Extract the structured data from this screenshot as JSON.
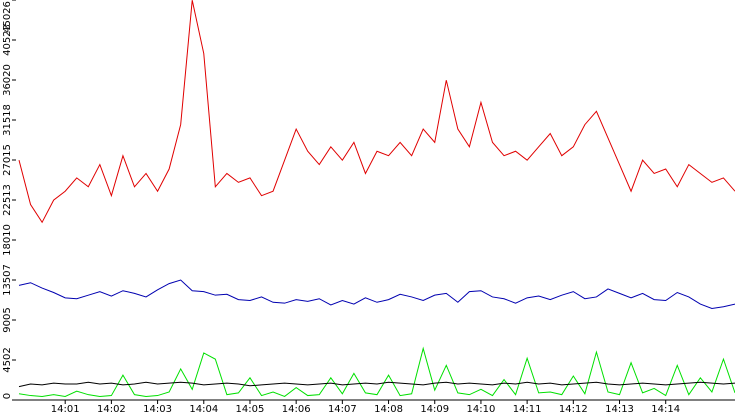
{
  "chart_data": {
    "type": "line",
    "x": [
      0,
      0.25,
      0.5,
      0.75,
      1,
      1.25,
      1.5,
      1.75,
      2,
      2.25,
      2.5,
      2.75,
      3,
      3.25,
      3.5,
      3.75,
      4,
      4.25,
      4.5,
      4.75,
      5,
      5.25,
      5.5,
      5.75,
      6,
      6.25,
      6.5,
      6.75,
      7,
      7.25,
      7.5,
      7.75,
      8,
      8.25,
      8.5,
      8.75,
      9,
      9.25,
      9.5,
      9.75,
      10,
      10.25,
      10.5,
      10.75,
      11,
      11.25,
      11.5,
      11.75,
      12,
      12.25,
      12.5,
      12.75,
      13,
      13.25,
      13.5,
      13.75,
      14,
      14.25,
      14.5,
      14.75,
      15,
      15.25,
      15.5
    ],
    "xlim": [
      0,
      15.5
    ],
    "xticks": [
      {
        "value": 1,
        "label": "14:01"
      },
      {
        "value": 2,
        "label": "14:02"
      },
      {
        "value": 3,
        "label": "14:03"
      },
      {
        "value": 4,
        "label": "14:04"
      },
      {
        "value": 5,
        "label": "14:05"
      },
      {
        "value": 6,
        "label": "14:06"
      },
      {
        "value": 7,
        "label": "14:07"
      },
      {
        "value": 8,
        "label": "14:08"
      },
      {
        "value": 9,
        "label": "14:09"
      },
      {
        "value": 10,
        "label": "14:10"
      },
      {
        "value": 11,
        "label": "14:11"
      },
      {
        "value": 12,
        "label": "14:12"
      },
      {
        "value": 13,
        "label": "14:13"
      },
      {
        "value": 14,
        "label": "14:14"
      }
    ],
    "ylim": [
      0,
      45026
    ],
    "yticks": [
      0,
      4502,
      9005,
      13507,
      18010,
      22513,
      27015,
      31518,
      36020,
      40523,
      45026
    ],
    "series": [
      {
        "color": "#e00000",
        "values": [
          27000,
          22000,
          20000,
          22500,
          23500,
          25000,
          24000,
          26500,
          23000,
          27500,
          24000,
          25500,
          23500,
          26000,
          31000,
          45000,
          39000,
          24000,
          25500,
          24500,
          25000,
          23000,
          23500,
          27000,
          30500,
          28000,
          26500,
          28500,
          27000,
          29000,
          25500,
          28000,
          27500,
          29000,
          27500,
          30500,
          29000,
          36000,
          30500,
          28500,
          33500,
          29000,
          27500,
          28000,
          27000,
          28500,
          30000,
          27500,
          28500,
          31000,
          32500,
          29500,
          26500,
          23500,
          27000,
          25500,
          26000,
          24000,
          26500,
          25500,
          24500,
          25000,
          23500
        ]
      },
      {
        "color": "#0000b0",
        "values": [
          12900,
          13200,
          12600,
          12100,
          11500,
          11400,
          11800,
          12200,
          11700,
          12300,
          12000,
          11600,
          12400,
          13100,
          13500,
          12300,
          12200,
          11800,
          11900,
          11300,
          11200,
          11600,
          11000,
          10900,
          11300,
          11100,
          11400,
          10700,
          11200,
          10800,
          11500,
          11000,
          11300,
          11900,
          11600,
          11200,
          11800,
          12000,
          11000,
          12200,
          12300,
          11600,
          11400,
          10900,
          11500,
          11700,
          11300,
          11800,
          12200,
          11400,
          11600,
          12500,
          12000,
          11500,
          12000,
          11300,
          11200,
          12100,
          11600,
          10800,
          10300,
          10500,
          10800
        ]
      },
      {
        "color": "#00e000",
        "values": [
          700,
          500,
          400,
          600,
          400,
          1000,
          600,
          400,
          500,
          2800,
          600,
          400,
          500,
          900,
          3500,
          1200,
          5300,
          4600,
          600,
          800,
          2500,
          500,
          900,
          400,
          1400,
          500,
          600,
          2500,
          700,
          3000,
          800,
          600,
          2800,
          500,
          700,
          5800,
          1100,
          3900,
          800,
          600,
          1200,
          500,
          2300,
          600,
          4700,
          800,
          900,
          600,
          2700,
          700,
          5400,
          900,
          600,
          4200,
          800,
          1300,
          500,
          3900,
          600,
          2500,
          900,
          4600,
          800
        ]
      },
      {
        "color": "#000000",
        "values": [
          1500,
          1800,
          1700,
          1900,
          1800,
          1800,
          2000,
          1800,
          1900,
          1700,
          1800,
          2000,
          1800,
          1900,
          2000,
          1900,
          1700,
          1800,
          1900,
          1800,
          1600,
          1700,
          1800,
          1900,
          1800,
          1700,
          1800,
          1900,
          1700,
          1800,
          1900,
          1800,
          2000,
          1900,
          1800,
          1700,
          1900,
          2000,
          1800,
          1900,
          1800,
          1700,
          1900,
          1800,
          2000,
          1800,
          1900,
          1700,
          1800,
          1900,
          2000,
          1800,
          1700,
          1800,
          1900,
          1800,
          1700,
          1800,
          1900,
          2000,
          1900,
          1800,
          1900
        ]
      }
    ]
  }
}
